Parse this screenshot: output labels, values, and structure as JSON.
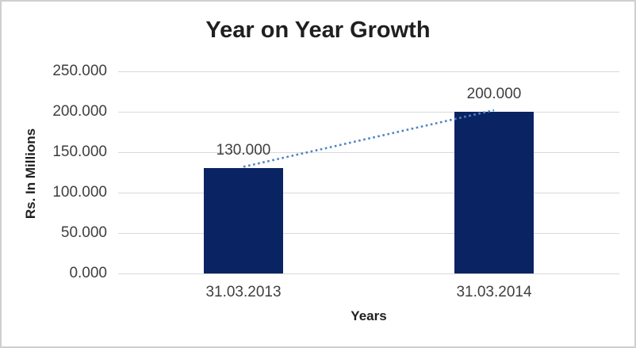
{
  "chart_data": {
    "type": "bar",
    "title": "Year on Year Growth",
    "xlabel": "Years",
    "ylabel": "Rs. In Millions",
    "categories": [
      "31.03.2013",
      "31.03.2014"
    ],
    "values": [
      130,
      200
    ],
    "data_labels": [
      "130.000",
      "200.000"
    ],
    "y_ticks": [
      {
        "value": 0,
        "label": "0.000"
      },
      {
        "value": 50,
        "label": "50.000"
      },
      {
        "value": 100,
        "label": "100.000"
      },
      {
        "value": 150,
        "label": "150.000"
      },
      {
        "value": 200,
        "label": "200.000"
      },
      {
        "value": 250,
        "label": "250.000"
      }
    ],
    "ylim": [
      0,
      250
    ],
    "grid": true,
    "legend": "none",
    "trendline": {
      "style": "dotted",
      "connects": [
        "31.03.2013",
        "31.03.2014"
      ],
      "from_values": [
        130,
        200
      ]
    },
    "colors": {
      "bar": "#0a2463",
      "trendline": "#4e84c4",
      "gridline": "#d9d9d9",
      "frame_border": "#cfcfcf",
      "title_text": "#1f1f1f",
      "tick_text": "#3f3f3f"
    }
  }
}
